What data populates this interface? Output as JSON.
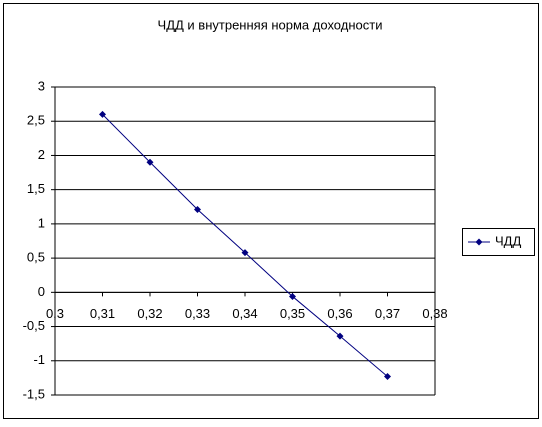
{
  "chart_data": {
    "type": "line",
    "title": "ЧДД и внутренняя норма доходности",
    "series": [
      {
        "name": "ЧДД",
        "color": "#000080",
        "x": [
          0.31,
          0.32,
          0.33,
          0.34,
          0.35,
          0.36,
          0.37
        ],
        "values": [
          2.6,
          1.9,
          1.21,
          0.58,
          -0.06,
          -0.64,
          -1.23
        ]
      }
    ],
    "xlim": [
      0.3,
      0.38
    ],
    "xticks": [
      {
        "value": 0.3,
        "label": "0,3"
      },
      {
        "value": 0.31,
        "label": "0,31"
      },
      {
        "value": 0.32,
        "label": "0,32"
      },
      {
        "value": 0.33,
        "label": "0,33"
      },
      {
        "value": 0.34,
        "label": "0,34"
      },
      {
        "value": 0.35,
        "label": "0,35"
      },
      {
        "value": 0.36,
        "label": "0,36"
      },
      {
        "value": 0.37,
        "label": "0,37"
      },
      {
        "value": 0.38,
        "label": "0,38"
      }
    ],
    "ylim": [
      -1.5,
      3
    ],
    "yticks": [
      3,
      {
        "value": 2.5,
        "label": "2,5"
      },
      2,
      {
        "value": 1.5,
        "label": "1,5"
      },
      1,
      {
        "value": 0.5,
        "label": "0,5"
      },
      0,
      {
        "value": -0.5,
        "label": "-0,5"
      },
      -1,
      {
        "value": -1.5,
        "label": "-1,5"
      }
    ],
    "grid": true,
    "legend": "right"
  }
}
